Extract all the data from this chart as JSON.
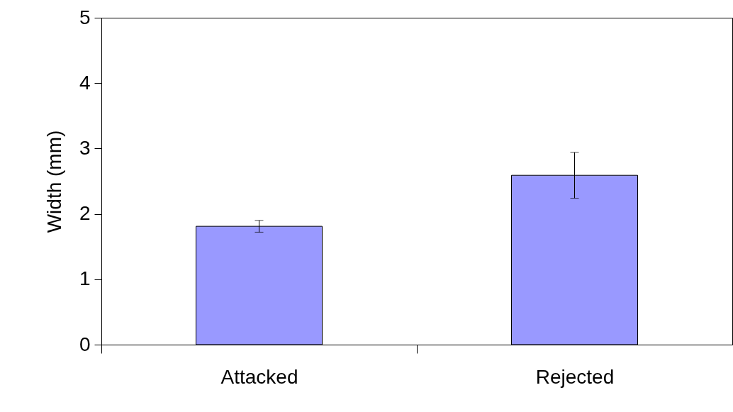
{
  "chart_data": {
    "type": "bar",
    "ylabel": "Width (mm)",
    "categories": [
      "Attacked",
      "Rejected"
    ],
    "values": [
      1.81,
      2.59
    ],
    "errors": [
      0.09,
      0.35
    ],
    "color": "#9999ff",
    "ylim": [
      0,
      5
    ],
    "yticks": [
      0,
      1,
      2,
      3,
      4,
      5
    ],
    "grid": false
  }
}
